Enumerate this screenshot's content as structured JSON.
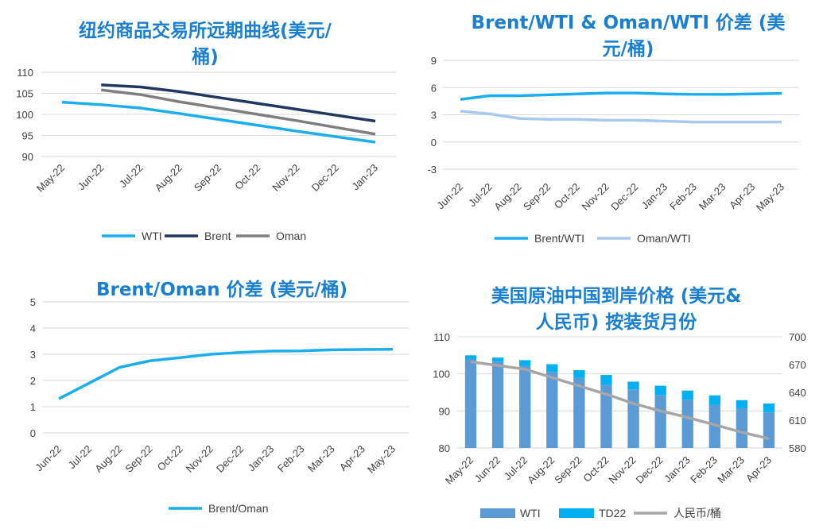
{
  "chart_data": [
    {
      "id": "futures",
      "type": "line",
      "title": "纽约商品交易所远期曲线(美元/桶)",
      "title_lines": [
        "纽约商品交易所远期曲线(美元/",
        "桶)"
      ],
      "categories": [
        "May-22",
        "Jun-22",
        "Jul-22",
        "Aug-22",
        "Sep-22",
        "Oct-22",
        "Nov-22",
        "Dec-22",
        "Jan-23"
      ],
      "ylim": [
        90,
        110
      ],
      "yticks": [
        90,
        95,
        100,
        105,
        110
      ],
      "grid": true,
      "legend_position": "bottom",
      "series": [
        {
          "name": "WTI",
          "color": "#1aaef0",
          "values": [
            102.9,
            102.3,
            101.5,
            100.2,
            98.8,
            97.4,
            96.0,
            94.7,
            93.4
          ]
        },
        {
          "name": "Brent",
          "color": "#22375f",
          "values": [
            null,
            107.0,
            106.5,
            105.4,
            104.0,
            102.6,
            101.2,
            99.8,
            98.4
          ]
        },
        {
          "name": "Oman",
          "color": "#7f7f7f",
          "values": [
            null,
            105.8,
            104.7,
            103.0,
            101.5,
            100.0,
            98.5,
            96.9,
            95.3
          ]
        }
      ]
    },
    {
      "id": "spreads",
      "type": "line",
      "title": "Brent/WTI & Oman/WTI 价差 (美元/桶)",
      "title_lines": [
        "Brent/WTI & Oman/WTI 价差 (美",
        "元/桶)"
      ],
      "categories": [
        "Jun-22",
        "Jul-22",
        "Aug-22",
        "Sep-22",
        "Oct-22",
        "Nov-22",
        "Dec-22",
        "Jan-23",
        "Feb-23",
        "Mar-23",
        "Apr-23",
        "May-23"
      ],
      "ylim": [
        -3,
        9
      ],
      "yticks": [
        -3,
        0,
        3,
        6,
        9
      ],
      "grid": true,
      "legend_position": "bottom",
      "series": [
        {
          "name": "Brent/WTI",
          "color": "#1aaef0",
          "values": [
            4.7,
            5.1,
            5.1,
            5.2,
            5.3,
            5.4,
            5.4,
            5.3,
            5.25,
            5.25,
            5.3,
            5.35
          ]
        },
        {
          "name": "Oman/WTI",
          "color": "#a9c8ec",
          "values": [
            3.4,
            3.1,
            2.6,
            2.5,
            2.5,
            2.4,
            2.4,
            2.3,
            2.2,
            2.2,
            2.2,
            2.2
          ]
        }
      ]
    },
    {
      "id": "brent-oman",
      "type": "line",
      "title": "Brent/Oman 价差 (美元/桶)",
      "title_lines": [
        "Brent/Oman 价差 (美元/桶)"
      ],
      "categories": [
        "Jun-22",
        "Jul-22",
        "Aug-22",
        "Sep-22",
        "Oct-22",
        "Nov-22",
        "Dec-22",
        "Jan-23",
        "Feb-23",
        "Mar-23",
        "Apr-23",
        "May-23"
      ],
      "ylim": [
        0,
        5
      ],
      "yticks": [
        0,
        1,
        2,
        3,
        4,
        5
      ],
      "grid": true,
      "legend_position": "bottom",
      "series": [
        {
          "name": "Brent/Oman",
          "color": "#1aaef0",
          "values": [
            1.3,
            1.9,
            2.5,
            2.75,
            2.87,
            3.0,
            3.07,
            3.12,
            3.13,
            3.17,
            3.18,
            3.19
          ]
        }
      ]
    },
    {
      "id": "china-landed",
      "type": "bar",
      "title": "美国原油中国到岸价格 (美元&人民币) 按装货月份",
      "title_lines": [
        "美国原油中国到岸价格 (美元&",
        "人民币) 按装货月份"
      ],
      "categories": [
        "May-22",
        "Jun-22",
        "Jul-22",
        "Aug-22",
        "Sep-22",
        "Oct-22",
        "Nov-22",
        "Dec-22",
        "Jan-23",
        "Feb-23",
        "Mar-23",
        "Apr-23"
      ],
      "ylim": [
        80,
        110
      ],
      "yticks": [
        80,
        90,
        100,
        110
      ],
      "y2lim": [
        580,
        700
      ],
      "y2ticks": [
        580,
        610,
        640,
        670,
        700
      ],
      "grid": true,
      "legend_position": "bottom",
      "series": [
        {
          "name": "WTI",
          "color": "#5b9bd5",
          "axis": "left",
          "values": [
            104.0,
            103.3,
            102.1,
            100.5,
            98.9,
            97.0,
            95.8,
            94.3,
            93.0,
            91.6,
            90.7,
            89.6
          ]
        },
        {
          "name": "TD22",
          "color": "#00b0f0",
          "axis": "left",
          "values": [
            1.0,
            1.1,
            1.6,
            2.1,
            2.1,
            2.7,
            2.1,
            2.5,
            2.5,
            2.6,
            2.2,
            2.4
          ]
        },
        {
          "name": "人民币/桶",
          "color": "#a6a6a6",
          "axis": "right",
          "values": [
            673,
            669,
            665,
            656,
            647,
            638,
            628,
            620,
            613,
            605,
            597,
            590
          ]
        }
      ]
    }
  ]
}
